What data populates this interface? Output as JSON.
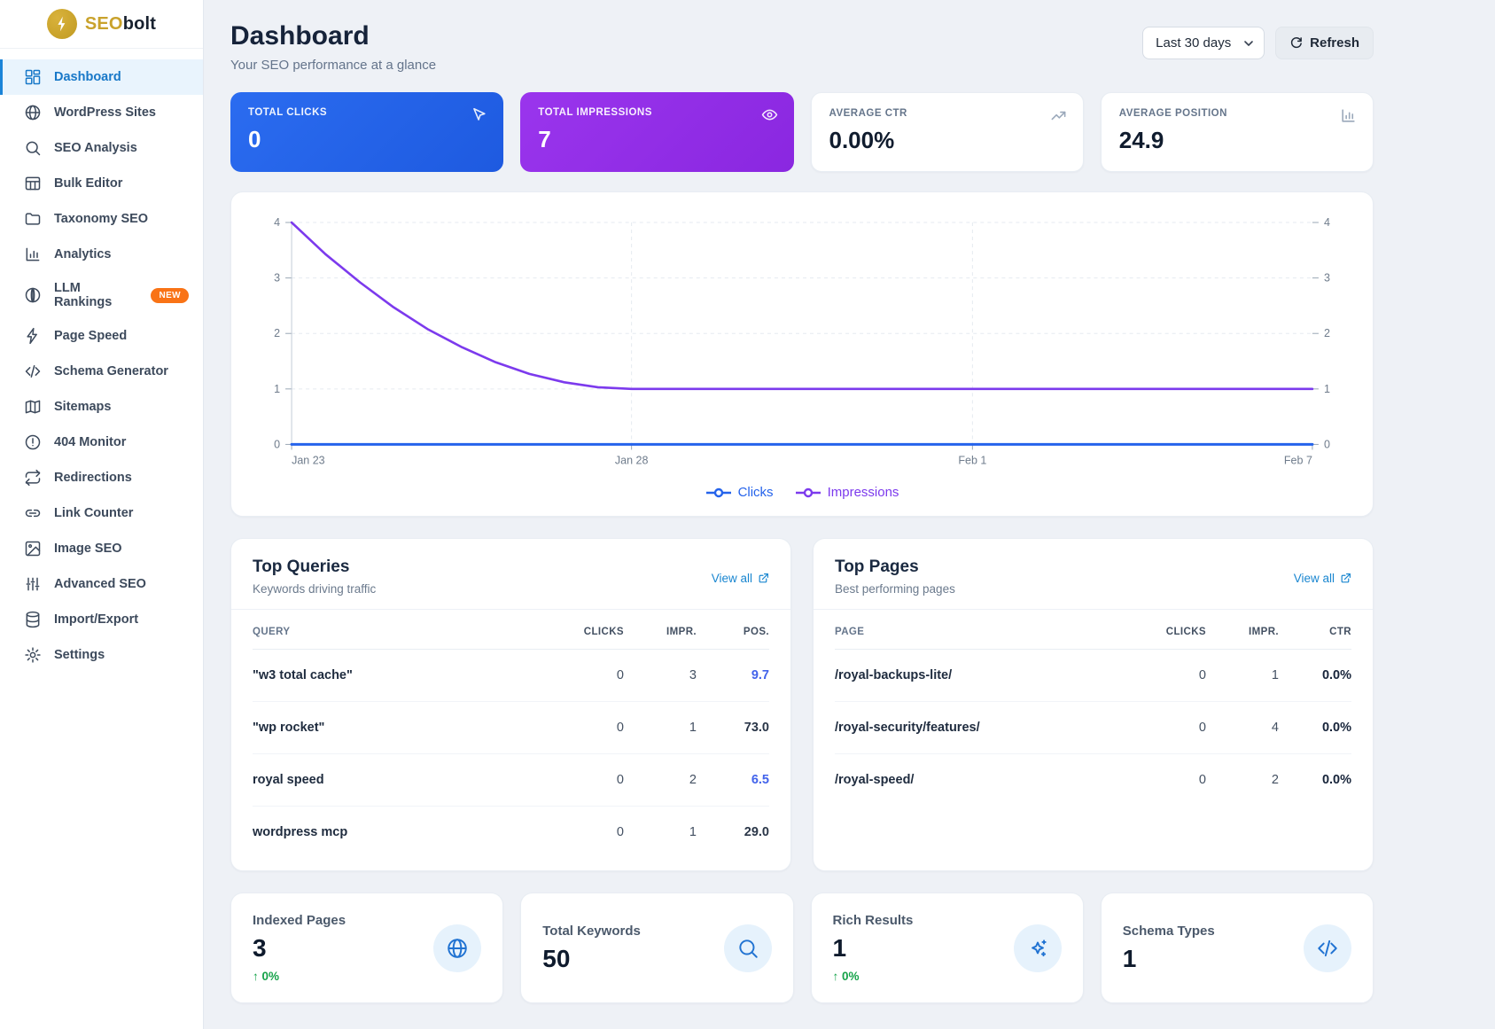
{
  "brand": {
    "name_primary": "SEO",
    "name_secondary": "bolt"
  },
  "sidebar": {
    "items": [
      {
        "label": "Dashboard",
        "icon": "dashboard-icon",
        "active": true
      },
      {
        "label": "WordPress Sites",
        "icon": "globe-icon"
      },
      {
        "label": "SEO Analysis",
        "icon": "search-icon"
      },
      {
        "label": "Bulk Editor",
        "icon": "table-icon"
      },
      {
        "label": "Taxonomy SEO",
        "icon": "folder-icon"
      },
      {
        "label": "Analytics",
        "icon": "bar-chart-icon"
      },
      {
        "label": "LLM Rankings",
        "icon": "llm-icon",
        "badge": "NEW"
      },
      {
        "label": "Page Speed",
        "icon": "lightning-icon"
      },
      {
        "label": "Schema Generator",
        "icon": "code-icon"
      },
      {
        "label": "Sitemaps",
        "icon": "map-icon"
      },
      {
        "label": "404 Monitor",
        "icon": "alert-circle-icon"
      },
      {
        "label": "Redirections",
        "icon": "repeat-icon"
      },
      {
        "label": "Link Counter",
        "icon": "link-icon"
      },
      {
        "label": "Image SEO",
        "icon": "image-icon"
      },
      {
        "label": "Advanced SEO",
        "icon": "sliders-icon"
      },
      {
        "label": "Import/Export",
        "icon": "database-icon"
      },
      {
        "label": "Settings",
        "icon": "gear-icon"
      }
    ]
  },
  "header": {
    "title": "Dashboard",
    "subtitle": "Your SEO performance at a glance",
    "date_range": "Last 30 days",
    "refresh_label": "Refresh"
  },
  "stat_cards": [
    {
      "label": "TOTAL CLICKS",
      "value": "0",
      "icon": "cursor-icon",
      "style": "blue"
    },
    {
      "label": "TOTAL IMPRESSIONS",
      "value": "7",
      "icon": "eye-icon",
      "style": "purple"
    },
    {
      "label": "AVERAGE CTR",
      "value": "0.00%",
      "icon": "trending-up-icon",
      "style": "white"
    },
    {
      "label": "AVERAGE POSITION",
      "value": "24.9",
      "icon": "bar-chart-icon",
      "style": "white"
    }
  ],
  "chart_data": {
    "type": "line",
    "title": "",
    "x_tick_labels": [
      "Jan 23",
      "Jan 28",
      "Feb 1",
      "Feb 7"
    ],
    "x_tick_positions": [
      0,
      0.333,
      0.667,
      1
    ],
    "y_ticks": [
      0,
      1,
      2,
      3,
      4
    ],
    "ylim": [
      0,
      4
    ],
    "grid": true,
    "legend_position": "bottom",
    "series": [
      {
        "name": "Clicks",
        "color": "#2563eb",
        "points": [
          [
            0,
            0
          ],
          [
            1,
            0
          ]
        ]
      },
      {
        "name": "Impressions",
        "color": "#7c3aed",
        "points": [
          [
            0,
            4
          ],
          [
            0.033,
            3.43
          ],
          [
            0.067,
            2.92
          ],
          [
            0.1,
            2.47
          ],
          [
            0.133,
            2.08
          ],
          [
            0.167,
            1.75
          ],
          [
            0.2,
            1.48
          ],
          [
            0.233,
            1.27
          ],
          [
            0.267,
            1.12
          ],
          [
            0.3,
            1.03
          ],
          [
            0.333,
            1
          ],
          [
            0.5,
            1
          ],
          [
            0.667,
            1
          ],
          [
            0.833,
            1
          ],
          [
            1,
            1
          ]
        ]
      }
    ]
  },
  "top_queries": {
    "title": "Top Queries",
    "subtitle": "Keywords driving traffic",
    "view_all": "View all",
    "columns": [
      "QUERY",
      "CLICKS",
      "IMPR.",
      "POS."
    ],
    "rows": [
      {
        "query": "\"w3 total cache\"",
        "clicks": "0",
        "impr": "3",
        "pos": "9.7",
        "pos_highlight": true
      },
      {
        "query": "\"wp rocket\"",
        "clicks": "0",
        "impr": "1",
        "pos": "73.0",
        "pos_highlight": false
      },
      {
        "query": "royal speed",
        "clicks": "0",
        "impr": "2",
        "pos": "6.5",
        "pos_highlight": true
      },
      {
        "query": "wordpress mcp",
        "clicks": "0",
        "impr": "1",
        "pos": "29.0",
        "pos_highlight": false
      }
    ]
  },
  "top_pages": {
    "title": "Top Pages",
    "subtitle": "Best performing pages",
    "view_all": "View all",
    "columns": [
      "PAGE",
      "CLICKS",
      "IMPR.",
      "CTR"
    ],
    "rows": [
      {
        "page": "/royal-backups-lite/",
        "clicks": "0",
        "impr": "1",
        "ctr": "0.0%"
      },
      {
        "page": "/royal-security/features/",
        "clicks": "0",
        "impr": "4",
        "ctr": "0.0%"
      },
      {
        "page": "/royal-speed/",
        "clicks": "0",
        "impr": "2",
        "ctr": "0.0%"
      }
    ]
  },
  "bottom_cards": [
    {
      "label": "Indexed Pages",
      "value": "3",
      "trend": "↑ 0%",
      "icon": "globe-icon"
    },
    {
      "label": "Total Keywords",
      "value": "50",
      "trend": "",
      "icon": "search-icon"
    },
    {
      "label": "Rich Results",
      "value": "1",
      "trend": "↑ 0%",
      "icon": "sparkles-icon"
    },
    {
      "label": "Schema Types",
      "value": "1",
      "trend": "",
      "icon": "code-icon"
    }
  ],
  "colors": {
    "accent_blue": "#2563eb",
    "accent_purple": "#7c3aed",
    "card_blue": "#2563eb",
    "card_purple": "#9333ea",
    "active_nav": "#1878c8",
    "badge_orange": "#f97316",
    "trend_green": "#16a34a",
    "pos_good": "#4263eb",
    "logo_gold": "#c9a22c"
  }
}
